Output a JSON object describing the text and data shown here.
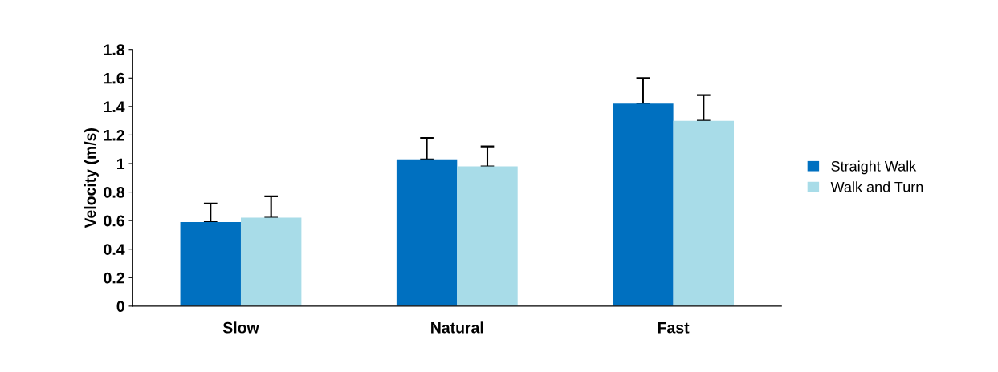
{
  "chart_data": {
    "type": "bar",
    "ylabel": "Velocity (m/s)",
    "categories": [
      "Slow",
      "Natural",
      "Fast"
    ],
    "series": [
      {
        "name": "Straight Walk",
        "color": "#0070c0",
        "values": [
          0.59,
          1.03,
          1.42
        ],
        "errors": [
          [
            0.59,
            0.72
          ],
          [
            1.03,
            1.18
          ],
          [
            1.42,
            1.6
          ]
        ]
      },
      {
        "name": "Walk and Turn",
        "color": "#a8dce8",
        "values": [
          0.62,
          0.98,
          1.3
        ],
        "errors": [
          [
            0.62,
            0.77
          ],
          [
            0.98,
            1.12
          ],
          [
            1.3,
            1.48
          ]
        ]
      }
    ],
    "ylim": [
      0,
      1.8
    ],
    "yticks": [
      0,
      0.2,
      0.4,
      0.6,
      0.8,
      1,
      1.2,
      1.4,
      1.6,
      1.8
    ],
    "grid": false,
    "legend": "right"
  }
}
